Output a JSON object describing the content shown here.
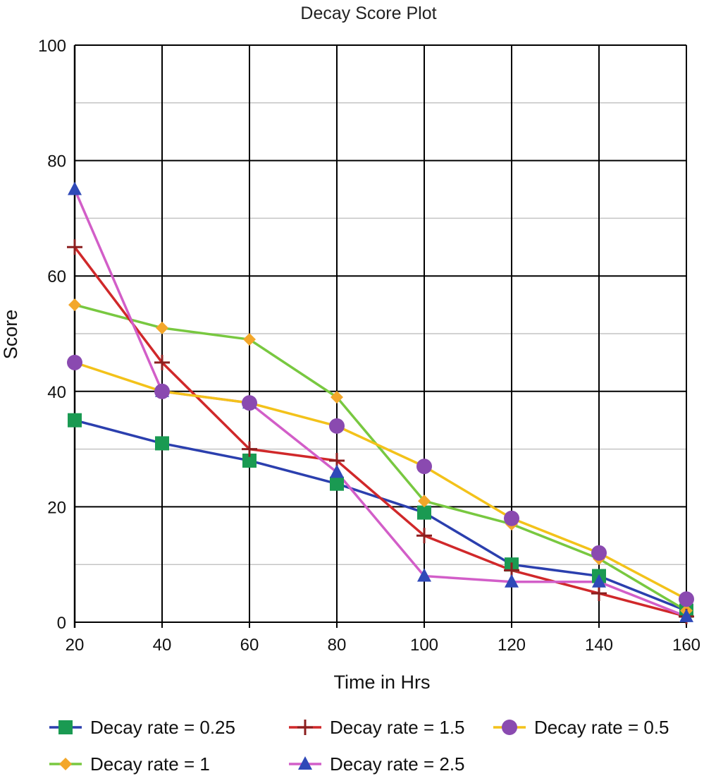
{
  "chart_data": {
    "type": "line",
    "title": "Decay Score Plot",
    "xlabel": "Time in Hrs",
    "ylabel": "Score",
    "x": [
      20,
      40,
      60,
      80,
      100,
      120,
      140,
      160
    ],
    "xlim": [
      20,
      160
    ],
    "ylim": [
      0,
      100
    ],
    "yticks": [
      0,
      20,
      40,
      60,
      80,
      100
    ],
    "grid": true,
    "legend_position": "bottom",
    "series": [
      {
        "name": "Decay rate = 0.25",
        "values": [
          35,
          31,
          28,
          24,
          19,
          10,
          8,
          2
        ],
        "line_color": "#2b3fae",
        "marker": "square",
        "marker_color": "#1a9a52"
      },
      {
        "name": "Decay rate = 1",
        "values": [
          55,
          51,
          49,
          39,
          21,
          17,
          11,
          2
        ],
        "line_color": "#78c840",
        "marker": "diamond",
        "marker_color": "#f3a72a"
      },
      {
        "name": "Decay rate = 1.5",
        "values": [
          65,
          45,
          30,
          28,
          15,
          9,
          5,
          1
        ],
        "line_color": "#d0282a",
        "marker": "plus",
        "marker_color": "#8b1e1e"
      },
      {
        "name": "Decay rate = 2.5",
        "values": [
          75,
          40,
          38,
          26,
          8,
          7,
          7,
          1
        ],
        "line_color": "#d25ec8",
        "marker": "triangle",
        "marker_color": "#2f49b8"
      },
      {
        "name": "Decay rate = 0.5",
        "values": [
          45,
          40,
          38,
          34,
          27,
          18,
          12,
          4
        ],
        "line_color": "#f3c21a",
        "marker": "circle",
        "marker_color": "#8a4ab0"
      }
    ]
  }
}
